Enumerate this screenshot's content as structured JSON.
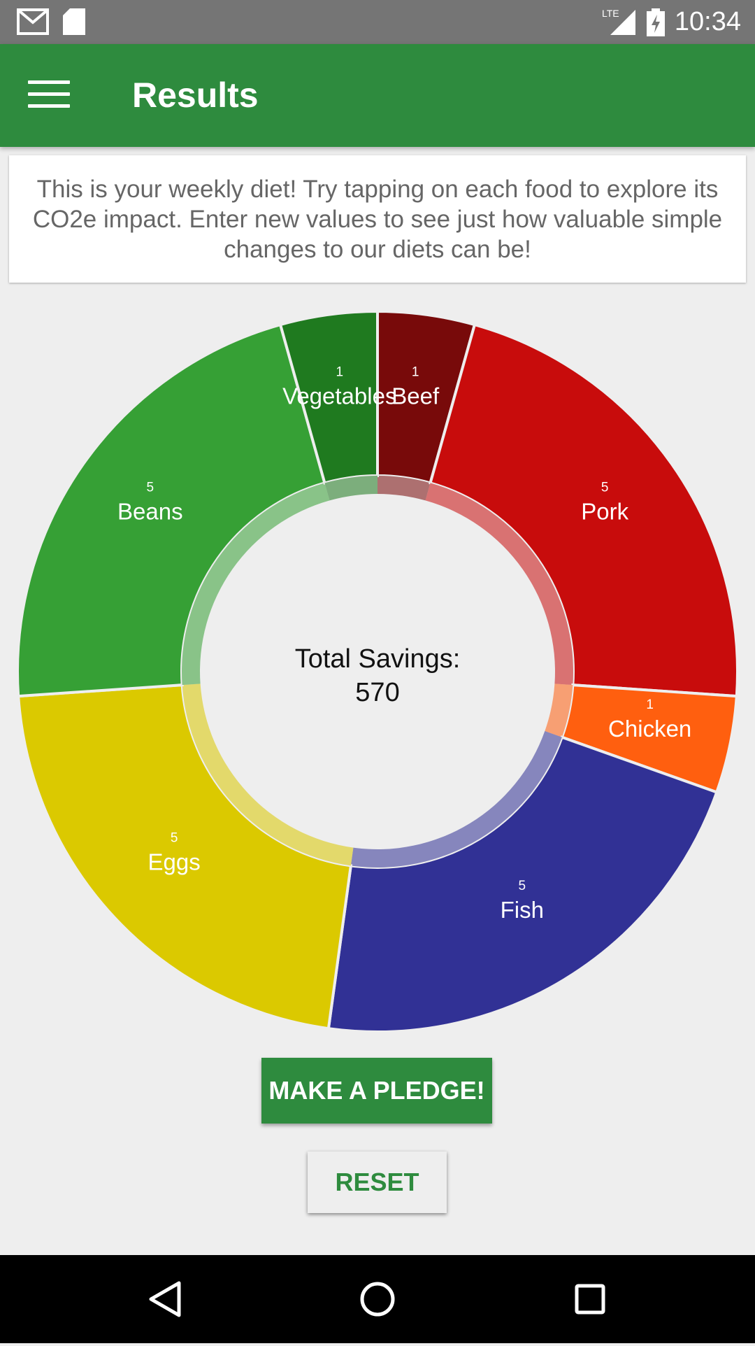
{
  "status_bar": {
    "time": "10:34",
    "network": "LTE",
    "icons": [
      "gmail-icon",
      "sd-card-icon",
      "lte-signal-icon",
      "battery-charging-icon"
    ]
  },
  "app_bar": {
    "title": "Results",
    "menu_icon": "hamburger-menu-icon"
  },
  "info_text": "This is your weekly diet! Try tapping on each food to explore its CO2e impact. Enter new values to see just how valuable simple changes to our diets can be!",
  "center": {
    "label": "Total Savings:",
    "value": "570"
  },
  "chart_data": {
    "type": "pie",
    "categories": [
      "Beef",
      "Pork",
      "Chicken",
      "Fish",
      "Eggs",
      "Beans",
      "Vegetables"
    ],
    "values": [
      1,
      5,
      1,
      5,
      5,
      5,
      1
    ],
    "colors": [
      "#780a0a",
      "#c80c0c",
      "#ff5f0f",
      "#313195",
      "#dbc900",
      "#36a035",
      "#1f7a1f"
    ],
    "title": "",
    "xlabel": "",
    "ylabel": ""
  },
  "buttons": {
    "pledge": "MAKE A PLEDGE!",
    "reset": "RESET"
  },
  "nav": [
    "back-icon",
    "home-icon",
    "recents-icon"
  ]
}
